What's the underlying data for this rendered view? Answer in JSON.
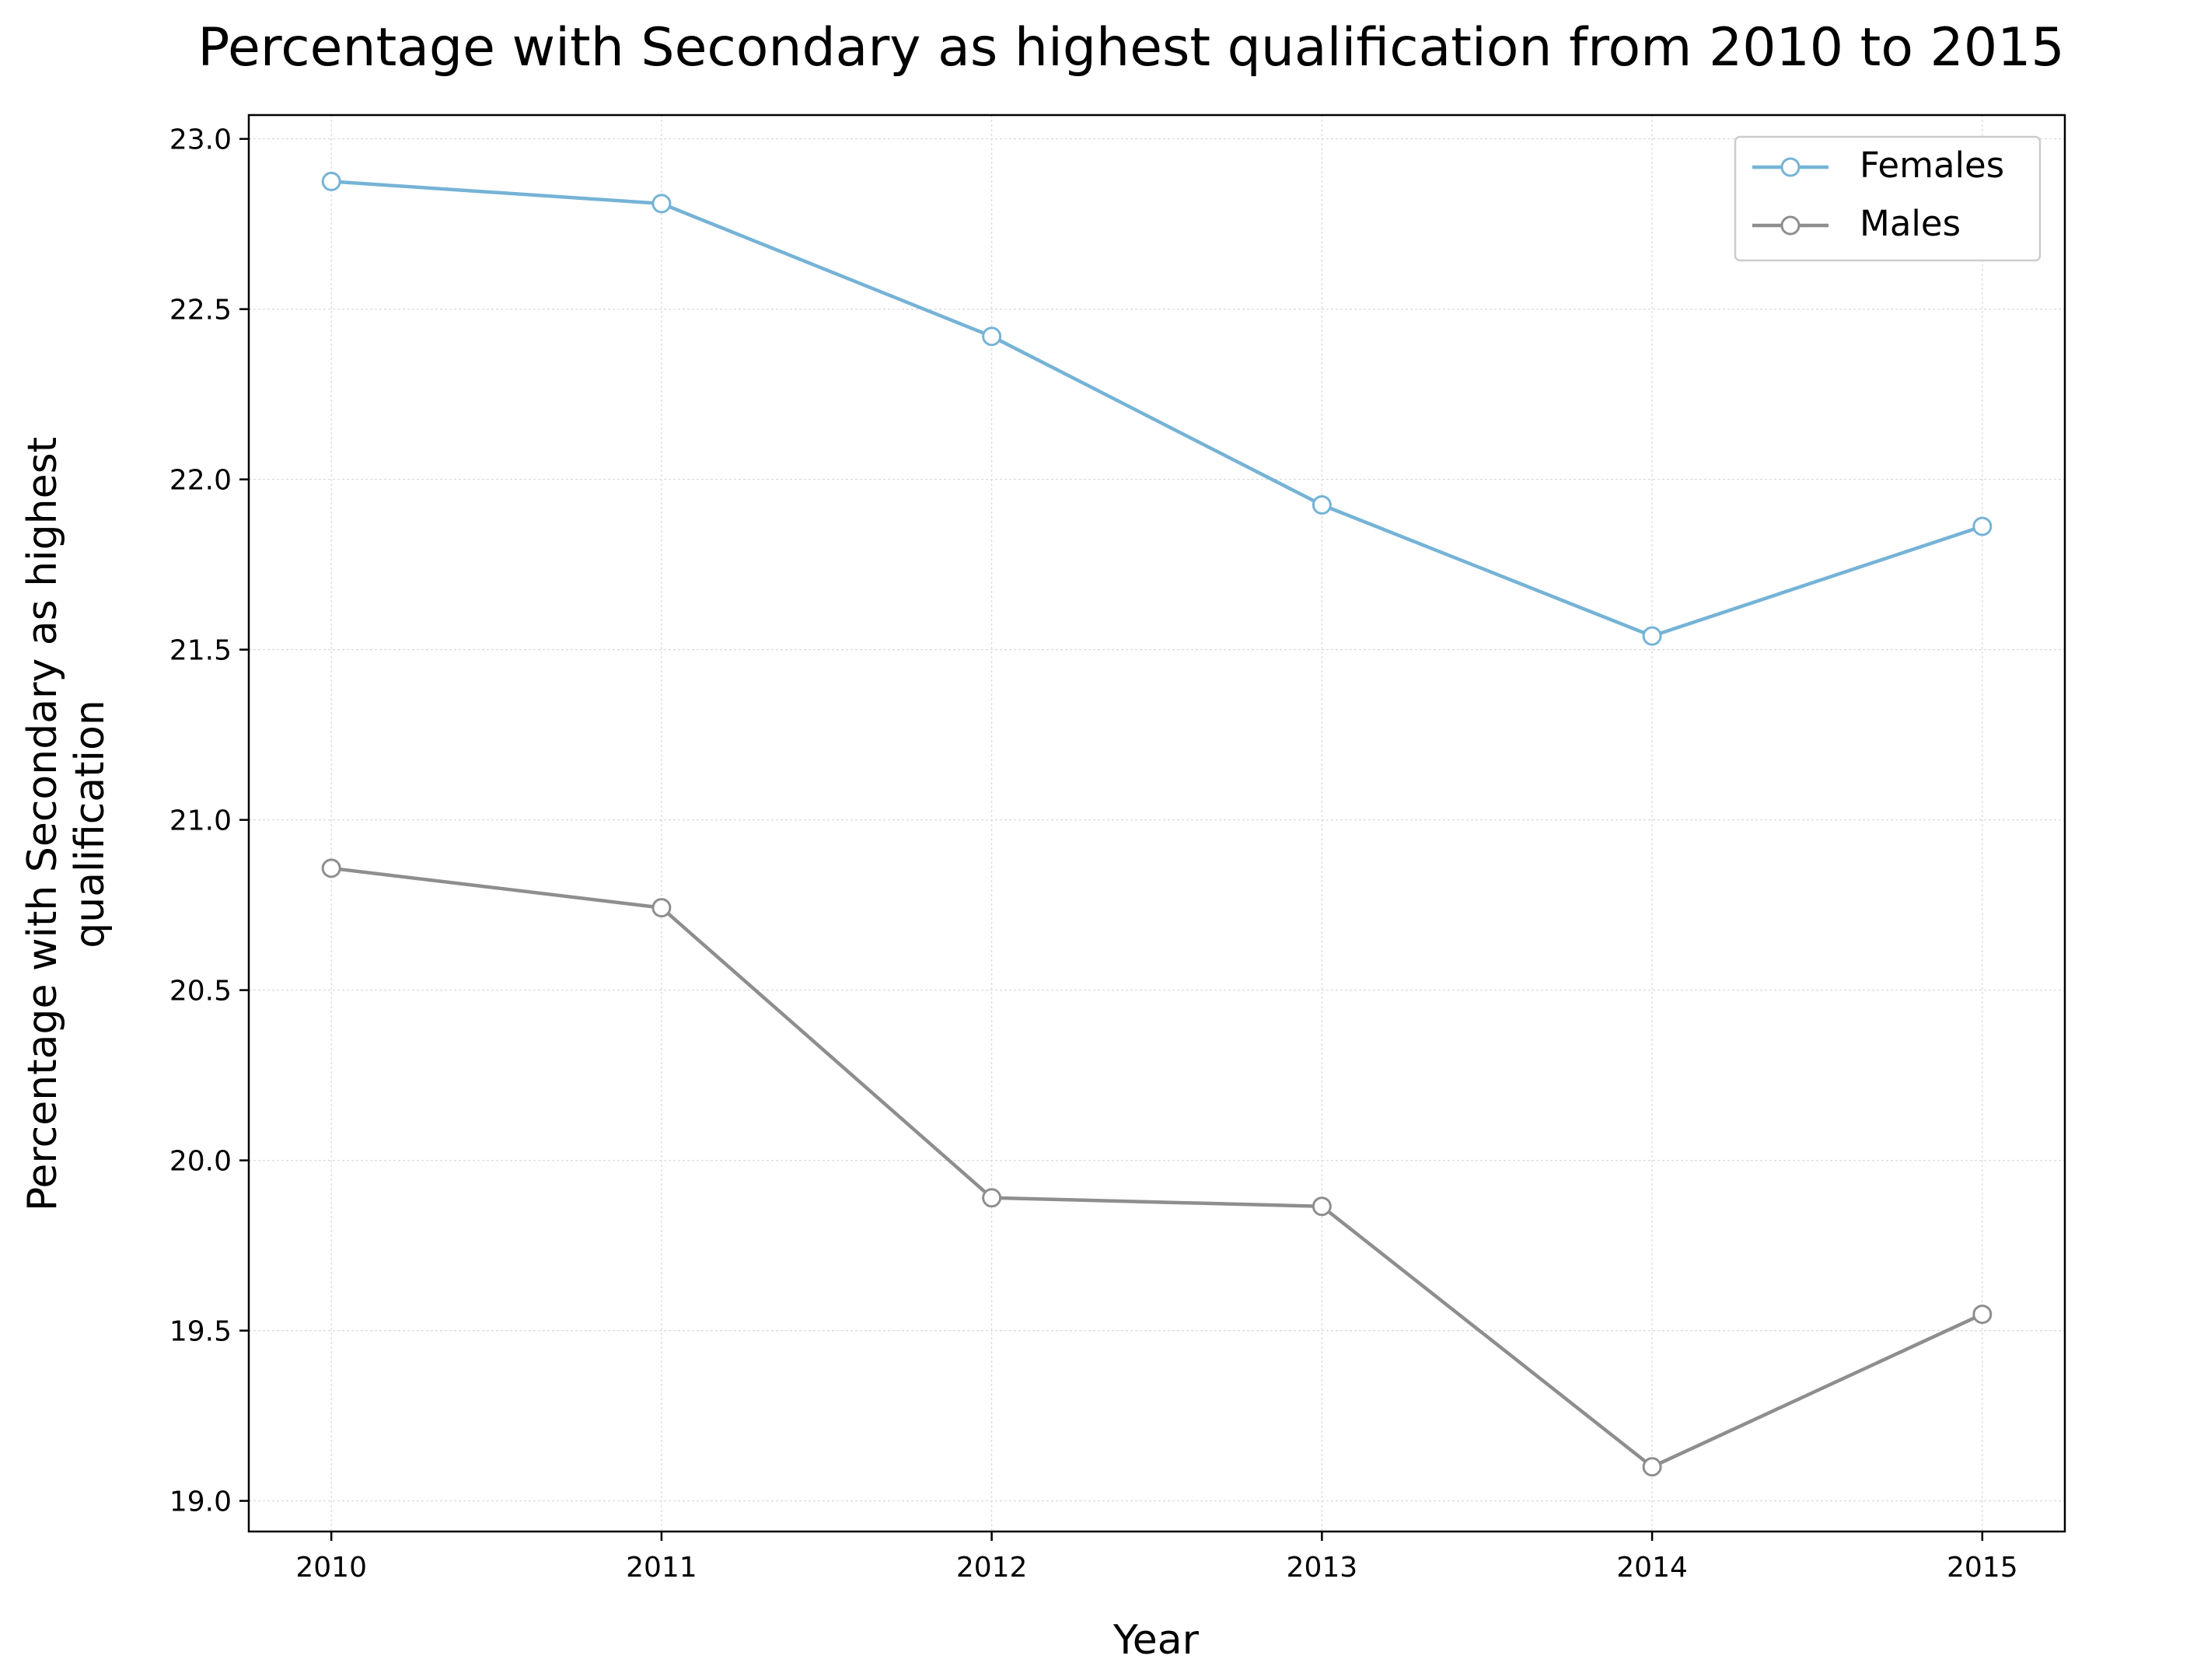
{
  "chart_data": {
    "type": "line",
    "title": "Percentage with Secondary as highest qualification from 2010 to 2015",
    "xlabel": "Year",
    "ylabel": [
      "Percentage with Secondary as highest",
      "qualification"
    ],
    "x": [
      2010,
      2011,
      2012,
      2013,
      2014,
      2015
    ],
    "x_tick_labels": [
      "2010",
      "2011",
      "2012",
      "2013",
      "2014",
      "2015"
    ],
    "y_ticks": [
      19.0,
      19.5,
      20.0,
      20.5,
      21.0,
      21.5,
      22.0,
      22.5,
      23.0
    ],
    "y_tick_labels": [
      "19.0",
      "19.5",
      "20.0",
      "20.5",
      "21.0",
      "21.5",
      "22.0",
      "22.5",
      "23.0"
    ],
    "xlim": [
      2009.75,
      2015.25
    ],
    "ylim": [
      18.91,
      23.07
    ],
    "grid": true,
    "legend_position": "top-right",
    "series": [
      {
        "name": "Females",
        "color": "#75b3d6",
        "values": [
          22.875,
          22.81,
          22.42,
          21.925,
          21.54,
          21.862
        ]
      },
      {
        "name": "Males",
        "color": "#8e8e8e",
        "values": [
          20.858,
          20.742,
          19.89,
          19.865,
          19.1,
          19.548
        ]
      }
    ]
  }
}
